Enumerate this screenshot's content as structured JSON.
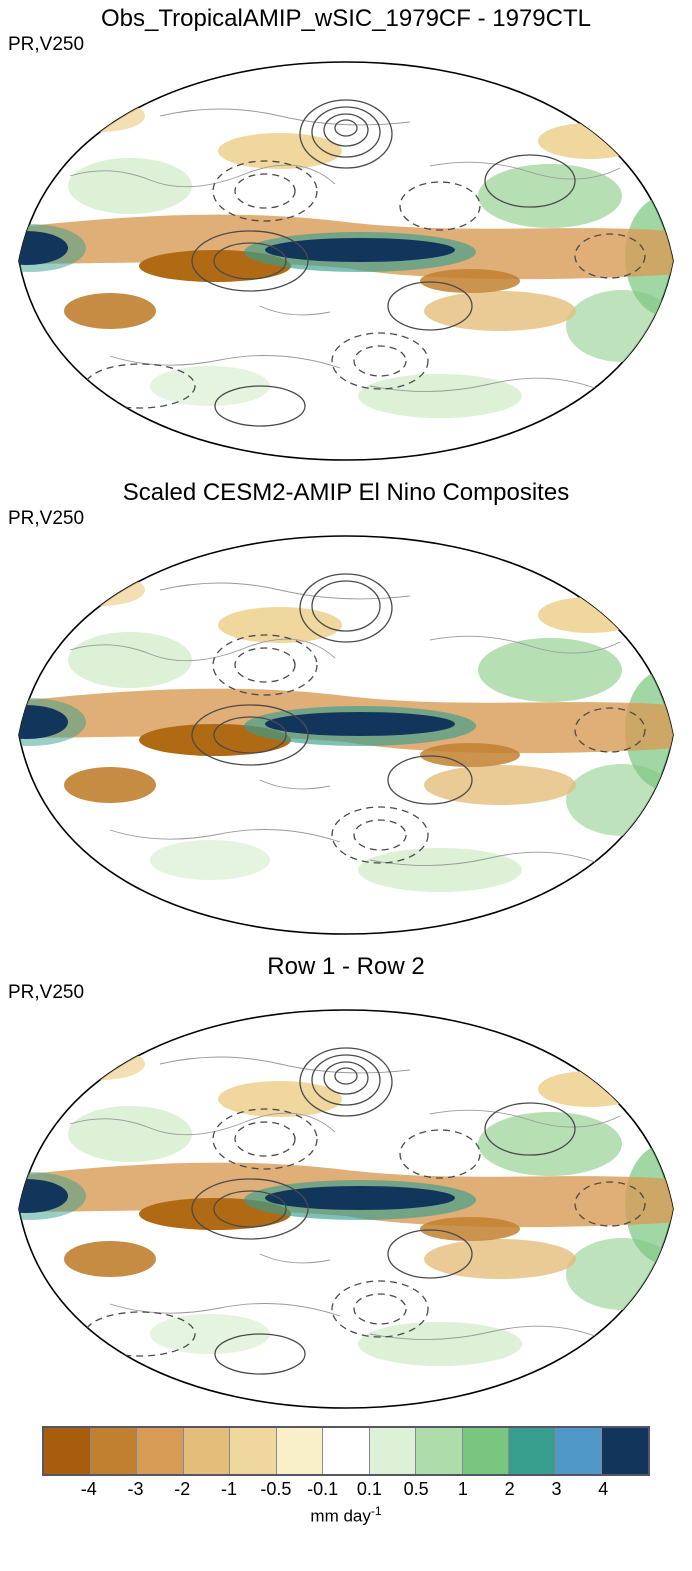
{
  "chart_data": {
    "type": "heatmap",
    "layout": "3 stacked global map panels sharing one horizontal colorbar",
    "panels": [
      {
        "title": "Obs_TropicalAMIP_wSIC_1979CF - 1979CTL",
        "field_label": "PR,V250"
      },
      {
        "title": "Scaled CESM2-AMIP El Nino Composites",
        "field_label": "PR,V250"
      },
      {
        "title": "Row 1 - Row 2",
        "field_label": "PR,V250"
      }
    ],
    "colorbar": {
      "ticks": [
        "-4",
        "-3",
        "-2",
        "-1",
        "-0.5",
        "-0.1",
        "0.1",
        "0.5",
        "1",
        "2",
        "3",
        "4"
      ],
      "colors": [
        "#a85d0c",
        "#c1802f",
        "#d89b55",
        "#e5bd7a",
        "#f0d79e",
        "#f9efc9",
        "#ffffff",
        "#ddf1d6",
        "#aedcab",
        "#79c67f",
        "#379e8d",
        "#4f97c7",
        "#12355b"
      ],
      "unit": "mm day",
      "unit_superscript": "-1",
      "orientation": "horizontal",
      "legend_position": "bottom"
    }
  }
}
